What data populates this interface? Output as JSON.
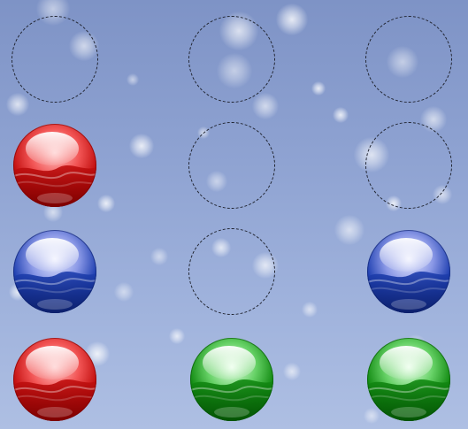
{
  "board": {
    "columns": 3,
    "rows": 4,
    "ball_colors": {
      "red": {
        "light": "#ffc4c4",
        "mid": "#f25555",
        "dark": "#c20f0f",
        "deep": "#7a0000"
      },
      "blue": {
        "light": "#eef0ff",
        "mid": "#8a98e6",
        "dark": "#1e3fb0",
        "deep": "#0c1f6a"
      },
      "green": {
        "light": "#e8ffe8",
        "mid": "#66d166",
        "dark": "#128a12",
        "deep": "#045204"
      }
    },
    "slots": [
      {
        "row": 0,
        "col": 0,
        "ball": null
      },
      {
        "row": 0,
        "col": 1,
        "ball": null
      },
      {
        "row": 0,
        "col": 2,
        "ball": null
      },
      {
        "row": 1,
        "col": 0,
        "ball": "red"
      },
      {
        "row": 1,
        "col": 1,
        "ball": null
      },
      {
        "row": 1,
        "col": 2,
        "ball": null
      },
      {
        "row": 2,
        "col": 0,
        "ball": "blue"
      },
      {
        "row": 2,
        "col": 1,
        "ball": null
      },
      {
        "row": 2,
        "col": 2,
        "ball": "blue"
      },
      {
        "row": 3,
        "col": 0,
        "ball": "red"
      },
      {
        "row": 3,
        "col": 1,
        "ball": "green"
      },
      {
        "row": 3,
        "col": 2,
        "ball": "green"
      }
    ]
  }
}
